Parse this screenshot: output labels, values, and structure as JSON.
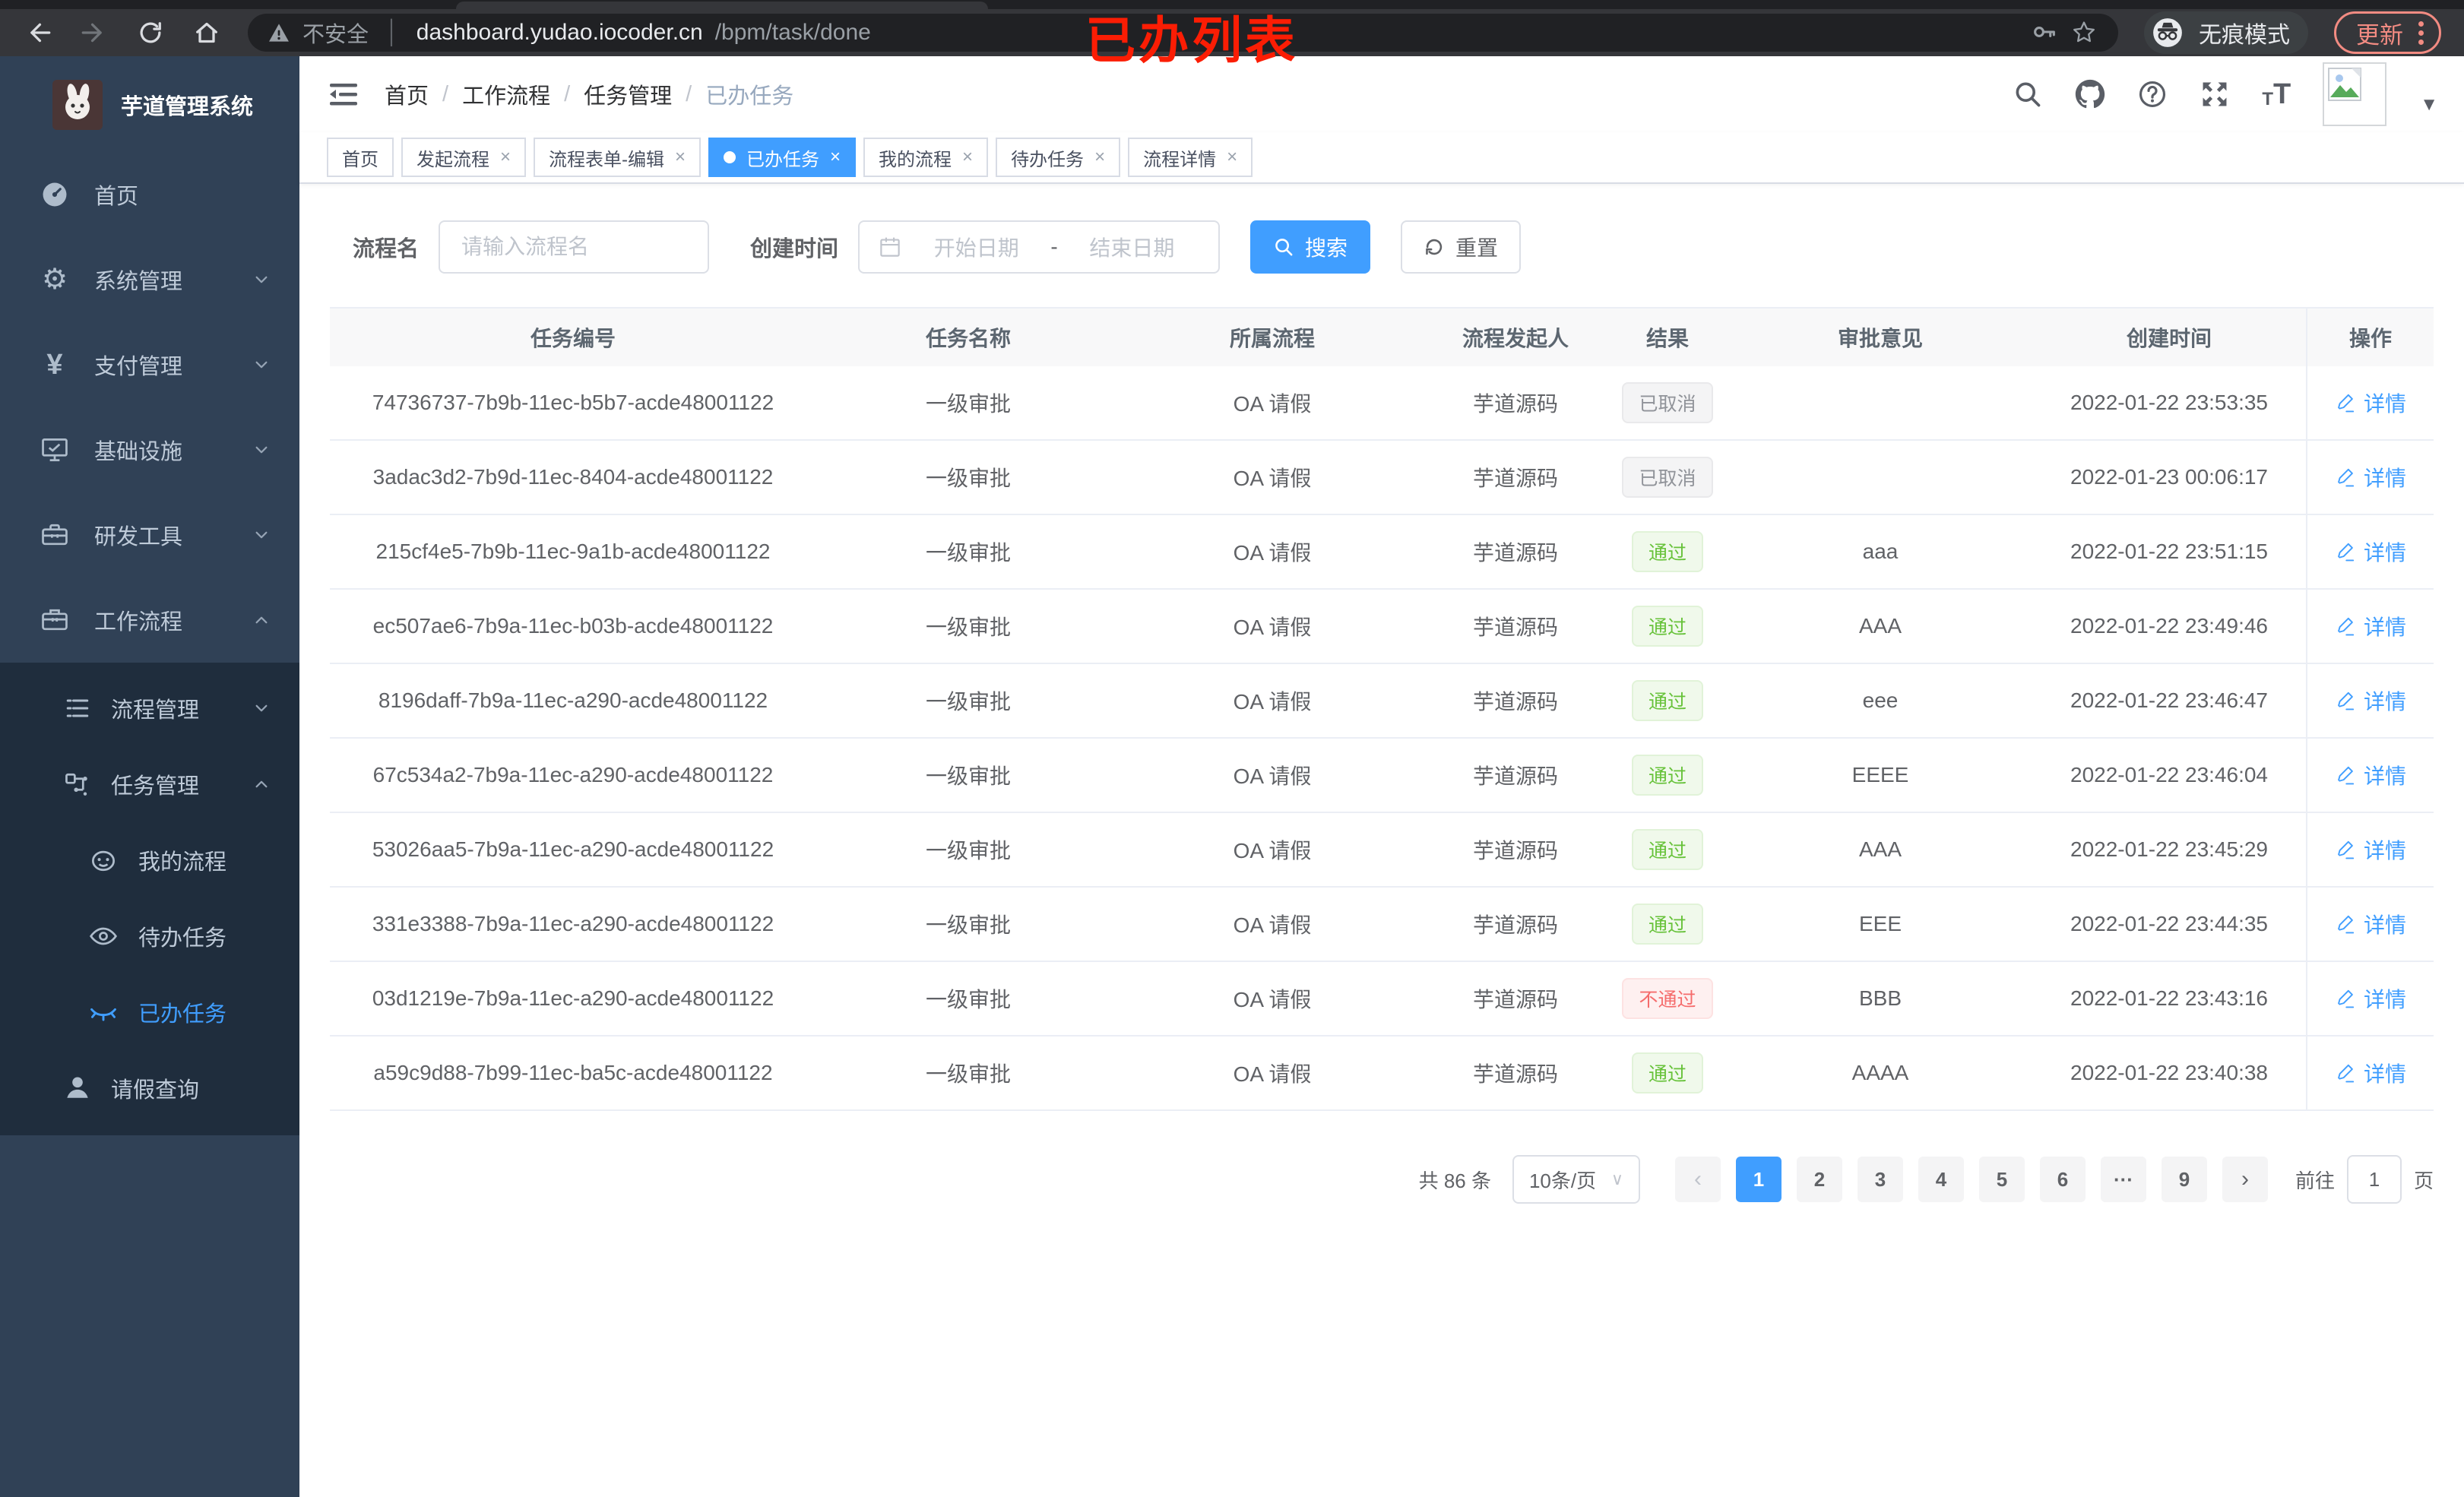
{
  "browser": {
    "security_label": "不安全",
    "url_host": "dashboard.yudao.iocoder.cn",
    "url_path": "/bpm/task/done",
    "incognito_label": "无痕模式",
    "update_label": "更新"
  },
  "annotation": {
    "text": "已办列表"
  },
  "sidebar": {
    "logo_title": "芋道管理系统",
    "menu": [
      {
        "label": "首页",
        "icon": "dashboard-icon",
        "level": 1,
        "arrow": "",
        "dark": false,
        "active": false
      },
      {
        "label": "系统管理",
        "icon": "gear-icon",
        "level": 1,
        "arrow": "down",
        "dark": false,
        "active": false
      },
      {
        "label": "支付管理",
        "icon": "yen-icon",
        "level": 1,
        "arrow": "down",
        "dark": false,
        "active": false
      },
      {
        "label": "基础设施",
        "icon": "monitor-icon",
        "level": 1,
        "arrow": "down",
        "dark": false,
        "active": false
      },
      {
        "label": "研发工具",
        "icon": "toolbox-icon",
        "level": 1,
        "arrow": "down",
        "dark": false,
        "active": false
      },
      {
        "label": "工作流程",
        "icon": "suitcase-icon",
        "level": 1,
        "arrow": "up",
        "dark": false,
        "active": false
      },
      {
        "label": "流程管理",
        "icon": "list-icon",
        "level": 2,
        "arrow": "down",
        "dark": true,
        "active": false
      },
      {
        "label": "任务管理",
        "icon": "flow-icon",
        "level": 2,
        "arrow": "up",
        "dark": true,
        "active": false
      },
      {
        "label": "我的流程",
        "icon": "face-icon",
        "level": 3,
        "arrow": "",
        "dark": true,
        "active": false
      },
      {
        "label": "待办任务",
        "icon": "eye-icon",
        "level": 3,
        "arrow": "",
        "dark": true,
        "active": false
      },
      {
        "label": "已办任务",
        "icon": "eye-closed-icon",
        "level": 3,
        "arrow": "",
        "dark": true,
        "active": true
      },
      {
        "label": "请假查询",
        "icon": "user-icon",
        "level": 2,
        "arrow": "",
        "dark": true,
        "active": false
      }
    ]
  },
  "breadcrumb": [
    "首页",
    "工作流程",
    "任务管理",
    "已办任务"
  ],
  "tabs": [
    {
      "label": "首页",
      "closable": false,
      "active": false
    },
    {
      "label": "发起流程",
      "closable": true,
      "active": false
    },
    {
      "label": "流程表单-编辑",
      "closable": true,
      "active": false
    },
    {
      "label": "已办任务",
      "closable": true,
      "active": true
    },
    {
      "label": "我的流程",
      "closable": true,
      "active": false
    },
    {
      "label": "待办任务",
      "closable": true,
      "active": false
    },
    {
      "label": "流程详情",
      "closable": true,
      "active": false
    }
  ],
  "search": {
    "name_label": "流程名",
    "name_placeholder": "请输入流程名",
    "date_label": "创建时间",
    "date_start_placeholder": "开始日期",
    "date_separator": "-",
    "date_end_placeholder": "结束日期",
    "search_label": "搜索",
    "reset_label": "重置"
  },
  "table": {
    "columns": [
      "任务编号",
      "任务名称",
      "所属流程",
      "流程发起人",
      "结果",
      "审批意见",
      "创建时间",
      "操作"
    ],
    "action_label": "详情",
    "rows": [
      {
        "id": "74736737-7b9b-11ec-b5b7-acde48001122",
        "name": "一级审批",
        "process": "OA 请假",
        "initiator": "芋道源码",
        "result": "已取消",
        "result_type": "info",
        "comment": "",
        "created": "2022-01-22 23:53:35"
      },
      {
        "id": "3adac3d2-7b9d-11ec-8404-acde48001122",
        "name": "一级审批",
        "process": "OA 请假",
        "initiator": "芋道源码",
        "result": "已取消",
        "result_type": "info",
        "comment": "",
        "created": "2022-01-23 00:06:17"
      },
      {
        "id": "215cf4e5-7b9b-11ec-9a1b-acde48001122",
        "name": "一级审批",
        "process": "OA 请假",
        "initiator": "芋道源码",
        "result": "通过",
        "result_type": "success",
        "comment": "aaa",
        "created": "2022-01-22 23:51:15"
      },
      {
        "id": "ec507ae6-7b9a-11ec-b03b-acde48001122",
        "name": "一级审批",
        "process": "OA 请假",
        "initiator": "芋道源码",
        "result": "通过",
        "result_type": "success",
        "comment": "AAA",
        "created": "2022-01-22 23:49:46"
      },
      {
        "id": "8196daff-7b9a-11ec-a290-acde48001122",
        "name": "一级审批",
        "process": "OA 请假",
        "initiator": "芋道源码",
        "result": "通过",
        "result_type": "success",
        "comment": "eee",
        "created": "2022-01-22 23:46:47"
      },
      {
        "id": "67c534a2-7b9a-11ec-a290-acde48001122",
        "name": "一级审批",
        "process": "OA 请假",
        "initiator": "芋道源码",
        "result": "通过",
        "result_type": "success",
        "comment": "EEEE",
        "created": "2022-01-22 23:46:04"
      },
      {
        "id": "53026aa5-7b9a-11ec-a290-acde48001122",
        "name": "一级审批",
        "process": "OA 请假",
        "initiator": "芋道源码",
        "result": "通过",
        "result_type": "success",
        "comment": "AAA",
        "created": "2022-01-22 23:45:29"
      },
      {
        "id": "331e3388-7b9a-11ec-a290-acde48001122",
        "name": "一级审批",
        "process": "OA 请假",
        "initiator": "芋道源码",
        "result": "通过",
        "result_type": "success",
        "comment": "EEE",
        "created": "2022-01-22 23:44:35"
      },
      {
        "id": "03d1219e-7b9a-11ec-a290-acde48001122",
        "name": "一级审批",
        "process": "OA 请假",
        "initiator": "芋道源码",
        "result": "不通过",
        "result_type": "danger",
        "comment": "BBB",
        "created": "2022-01-22 23:43:16"
      },
      {
        "id": "a59c9d88-7b99-11ec-ba5c-acde48001122",
        "name": "一级审批",
        "process": "OA 请假",
        "initiator": "芋道源码",
        "result": "通过",
        "result_type": "success",
        "comment": "AAAA",
        "created": "2022-01-22 23:40:38"
      }
    ]
  },
  "pagination": {
    "total_label": "共 86 条",
    "page_size_label": "10条/页",
    "pages": [
      "1",
      "2",
      "3",
      "4",
      "5",
      "6",
      "···",
      "9"
    ],
    "active_page": "1",
    "jump_prefix": "前往",
    "jump_value": "1",
    "jump_suffix": "页"
  },
  "colors": {
    "accent": "#409eff",
    "success": "#67c23a",
    "danger": "#f56c6c",
    "info": "#909399",
    "sidebar_bg": "#304156",
    "submenu_bg": "#1f2d3d"
  }
}
